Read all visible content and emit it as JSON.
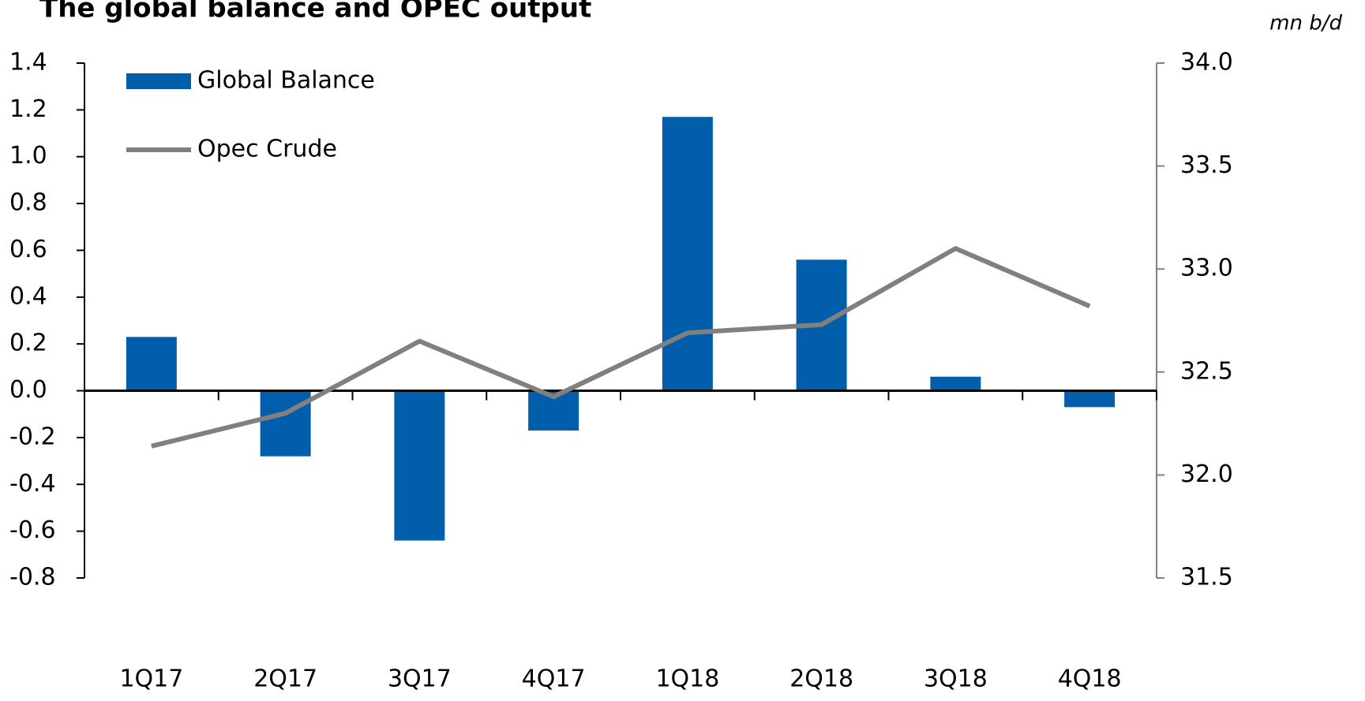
{
  "chart_data": {
    "type": "bar",
    "title": "The global balance and OPEC output",
    "unit_label": "mn b/d",
    "categories": [
      "1Q17",
      "2Q17",
      "3Q17",
      "4Q17",
      "1Q18",
      "2Q18",
      "3Q18",
      "4Q18"
    ],
    "series": [
      {
        "name": "Global Balance",
        "type": "bar",
        "color": "#005eaa",
        "values": [
          0.23,
          -0.28,
          -0.64,
          -0.17,
          1.17,
          0.56,
          0.06,
          -0.07
        ]
      },
      {
        "name": "Opec Crude",
        "type": "line",
        "axis": "y2",
        "color": "#808080",
        "values": [
          32.14,
          32.3,
          32.65,
          32.38,
          32.69,
          32.73,
          33.1,
          32.82
        ]
      }
    ],
    "ylim": [
      -0.8,
      1.4
    ],
    "yticks": [
      -0.8,
      -0.6,
      -0.4,
      -0.2,
      {
        "value": 0,
        "label": "0.0"
      },
      0.2,
      0.4,
      0.6,
      0.8,
      {
        "value": 1,
        "label": "1.0"
      },
      1.2,
      1.4
    ],
    "y2lim": [
      31.5,
      34
    ],
    "y2ticks": [
      31.5,
      {
        "value": 32,
        "label": "32.0"
      },
      32.5,
      {
        "value": 33,
        "label": "33.0"
      },
      33.5,
      {
        "value": 34,
        "label": "34.0"
      }
    ],
    "legend": "upper left"
  }
}
